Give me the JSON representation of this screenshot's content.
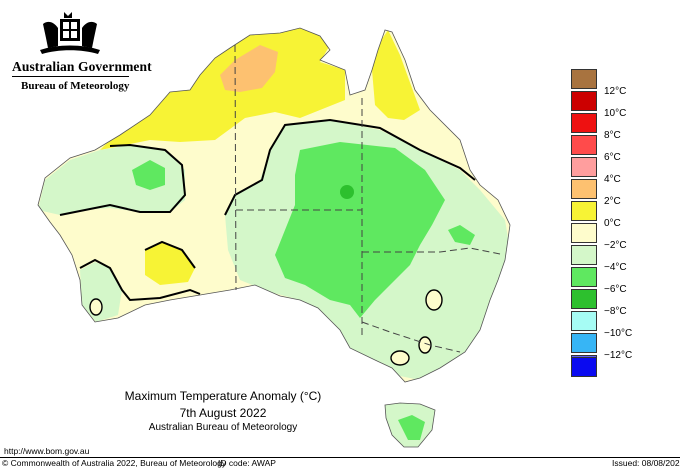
{
  "header": {
    "government": "Australian Government",
    "bureau": "Bureau of Meteorology"
  },
  "map": {
    "title": "Maximum Temperature Anomaly (°C)",
    "date": "7th August 2022",
    "agency": "Australian Bureau of Meteorology"
  },
  "legend": {
    "items": [
      {
        "label": "",
        "color": "#a8733f"
      },
      {
        "label": "12°C",
        "color": "#cc0000"
      },
      {
        "label": "10°C",
        "color": "#ee1111"
      },
      {
        "label": "8°C",
        "color": "#ff4b4b"
      },
      {
        "label": "6°C",
        "color": "#ff9e9e"
      },
      {
        "label": "4°C",
        "color": "#fdc170"
      },
      {
        "label": "2°C",
        "color": "#f7f335"
      },
      {
        "label": "0°C",
        "color": "#fefccc"
      },
      {
        "label": "−2°C",
        "color": "#d4f7c9"
      },
      {
        "label": "−4°C",
        "color": "#5fe860"
      },
      {
        "label": "−6°C",
        "color": "#2dc02e"
      },
      {
        "label": "−8°C",
        "color": "#a6fcf4"
      },
      {
        "label": "−10°C",
        "color": "#37b5f5"
      },
      {
        "label": "−12°C",
        "color": "#6262f0"
      },
      {
        "label": "",
        "color": "#0a0af0"
      }
    ]
  },
  "footer": {
    "url": "http://www.bom.gov.au",
    "copyright": "© Commonwealth of Australia 2022, Bureau of Meteorology",
    "id_code": "ID code: AWAP",
    "issued": "Issued: 08/08/2022"
  }
}
